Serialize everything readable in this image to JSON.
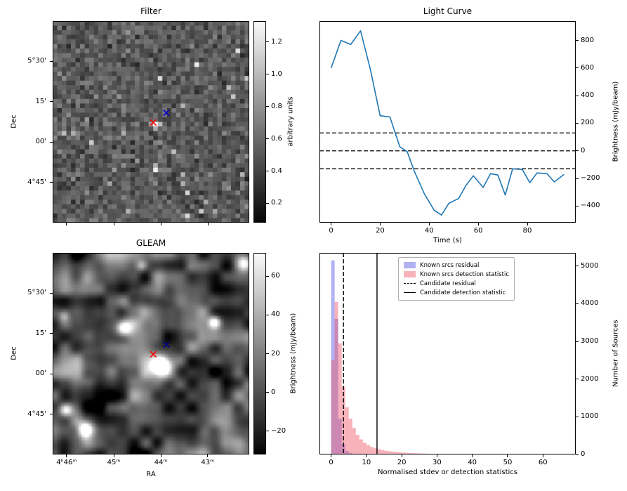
{
  "chart_data": [
    {
      "type": "heatmap",
      "title": "Filter",
      "ylabel": "Dec",
      "yticks": [
        {
          "label": "5°30'",
          "pos": 0.2
        },
        {
          "label": "15'",
          "pos": 0.4
        },
        {
          "label": "00'",
          "pos": 0.6
        },
        {
          "label": "4°45'",
          "pos": 0.8
        }
      ],
      "xtick_positions": [
        0.071,
        0.311,
        0.551,
        0.791
      ],
      "colorbar": {
        "label": "arbitrary units",
        "vmin": 0.08,
        "vmax": 1.33,
        "decimals": 1,
        "ticks": [
          1.2,
          1.0,
          0.8,
          0.6,
          0.4,
          0.2
        ]
      },
      "markers": [
        {
          "name": "candidate-position",
          "color": "#ff0000",
          "x": 0.512,
          "y": 0.503
        },
        {
          "name": "reference-position",
          "color": "#0000cd",
          "x": 0.578,
          "y": 0.455
        }
      ]
    },
    {
      "type": "line",
      "title": "Light Curve",
      "xlabel": "Time (s)",
      "ylabel": "Brightness (mJy/beam)",
      "xlim": [
        -4.75,
        99.75
      ],
      "ylim": [
        -520,
        940
      ],
      "xticks": [
        0,
        20,
        40,
        60,
        80
      ],
      "yticks": [
        800,
        600,
        400,
        200,
        0,
        -200,
        -400
      ],
      "thresholds": [
        130,
        0,
        -130
      ],
      "color": "#1f77b4",
      "x": [
        0,
        4,
        8,
        12,
        16,
        20,
        24,
        28,
        31,
        34,
        38,
        42,
        45,
        48,
        52,
        55,
        58,
        62,
        65,
        68,
        71,
        74,
        78,
        81,
        84,
        88,
        91,
        95
      ],
      "y": [
        600,
        800,
        770,
        870,
        590,
        255,
        245,
        30,
        -5,
        -150,
        -310,
        -430,
        -465,
        -380,
        -345,
        -250,
        -180,
        -265,
        -165,
        -175,
        -320,
        -130,
        -135,
        -230,
        -160,
        -165,
        -225,
        -170
      ]
    },
    {
      "type": "heatmap",
      "title": "GLEAM",
      "xlabel": "RA",
      "ylabel": "Dec",
      "xticks": [
        {
          "label": "4ʰ46ᵐ",
          "pos": 0.071
        },
        {
          "label": "45ᵐ",
          "pos": 0.311
        },
        {
          "label": "44ᵐ",
          "pos": 0.551
        },
        {
          "label": "43ᵐ",
          "pos": 0.789
        }
      ],
      "yticks": [
        {
          "label": "5°30'",
          "pos": 0.2
        },
        {
          "label": "15'",
          "pos": 0.4
        },
        {
          "label": "00'",
          "pos": 0.6
        },
        {
          "label": "4°45'",
          "pos": 0.8
        }
      ],
      "colorbar": {
        "label": "Brightness (mJy/beam)",
        "vmin": -32,
        "vmax": 72,
        "decimals": 0,
        "ticks": [
          60,
          40,
          20,
          0,
          -20
        ]
      },
      "markers": [
        {
          "name": "candidate-position",
          "color": "#ff0000",
          "x": 0.512,
          "y": 0.503
        },
        {
          "name": "reference-position",
          "color": "#00008b",
          "x": 0.578,
          "y": 0.455
        }
      ]
    },
    {
      "type": "bar",
      "xlabel": "Normalised stdev or detection statistics",
      "ylabel": "Number of Sources",
      "xlim": [
        -3.3,
        69.3
      ],
      "ylim": [
        0,
        5350
      ],
      "xticks": [
        0,
        10,
        20,
        30,
        40,
        50,
        60
      ],
      "yticks": [
        0,
        1000,
        2000,
        3000,
        4000,
        5000
      ],
      "series": [
        {
          "name": "Known srcs residual",
          "color": "#4444dd",
          "opacity": 0.42,
          "bin_start": 0,
          "bin_width": 1,
          "values": [
            5150,
            3600,
            950,
            280,
            90,
            40,
            15,
            5
          ]
        },
        {
          "name": "Known srcs detection statistic",
          "color": "#ee5566",
          "opacity": 0.45,
          "bin_start": 0,
          "bin_width": 1,
          "values": [
            2500,
            4050,
            2950,
            1800,
            1250,
            950,
            700,
            520,
            400,
            310,
            250,
            200,
            165,
            140,
            120,
            100,
            88,
            76,
            66,
            58,
            50,
            44,
            39,
            34,
            30,
            27,
            24,
            21,
            19,
            17,
            15,
            13,
            12,
            11,
            10,
            9,
            8,
            7,
            7,
            6,
            6,
            5,
            5,
            4,
            4,
            4,
            3,
            3,
            3,
            3,
            2,
            2,
            2,
            2,
            2,
            2,
            2,
            1,
            1,
            1,
            1,
            1,
            1,
            1,
            1,
            1
          ]
        }
      ],
      "vlines": [
        {
          "name": "Candidate residual",
          "style": "dashed",
          "x": 3.5
        },
        {
          "name": "Candidate detection statistic",
          "style": "solid",
          "x": 13
        }
      ]
    }
  ]
}
